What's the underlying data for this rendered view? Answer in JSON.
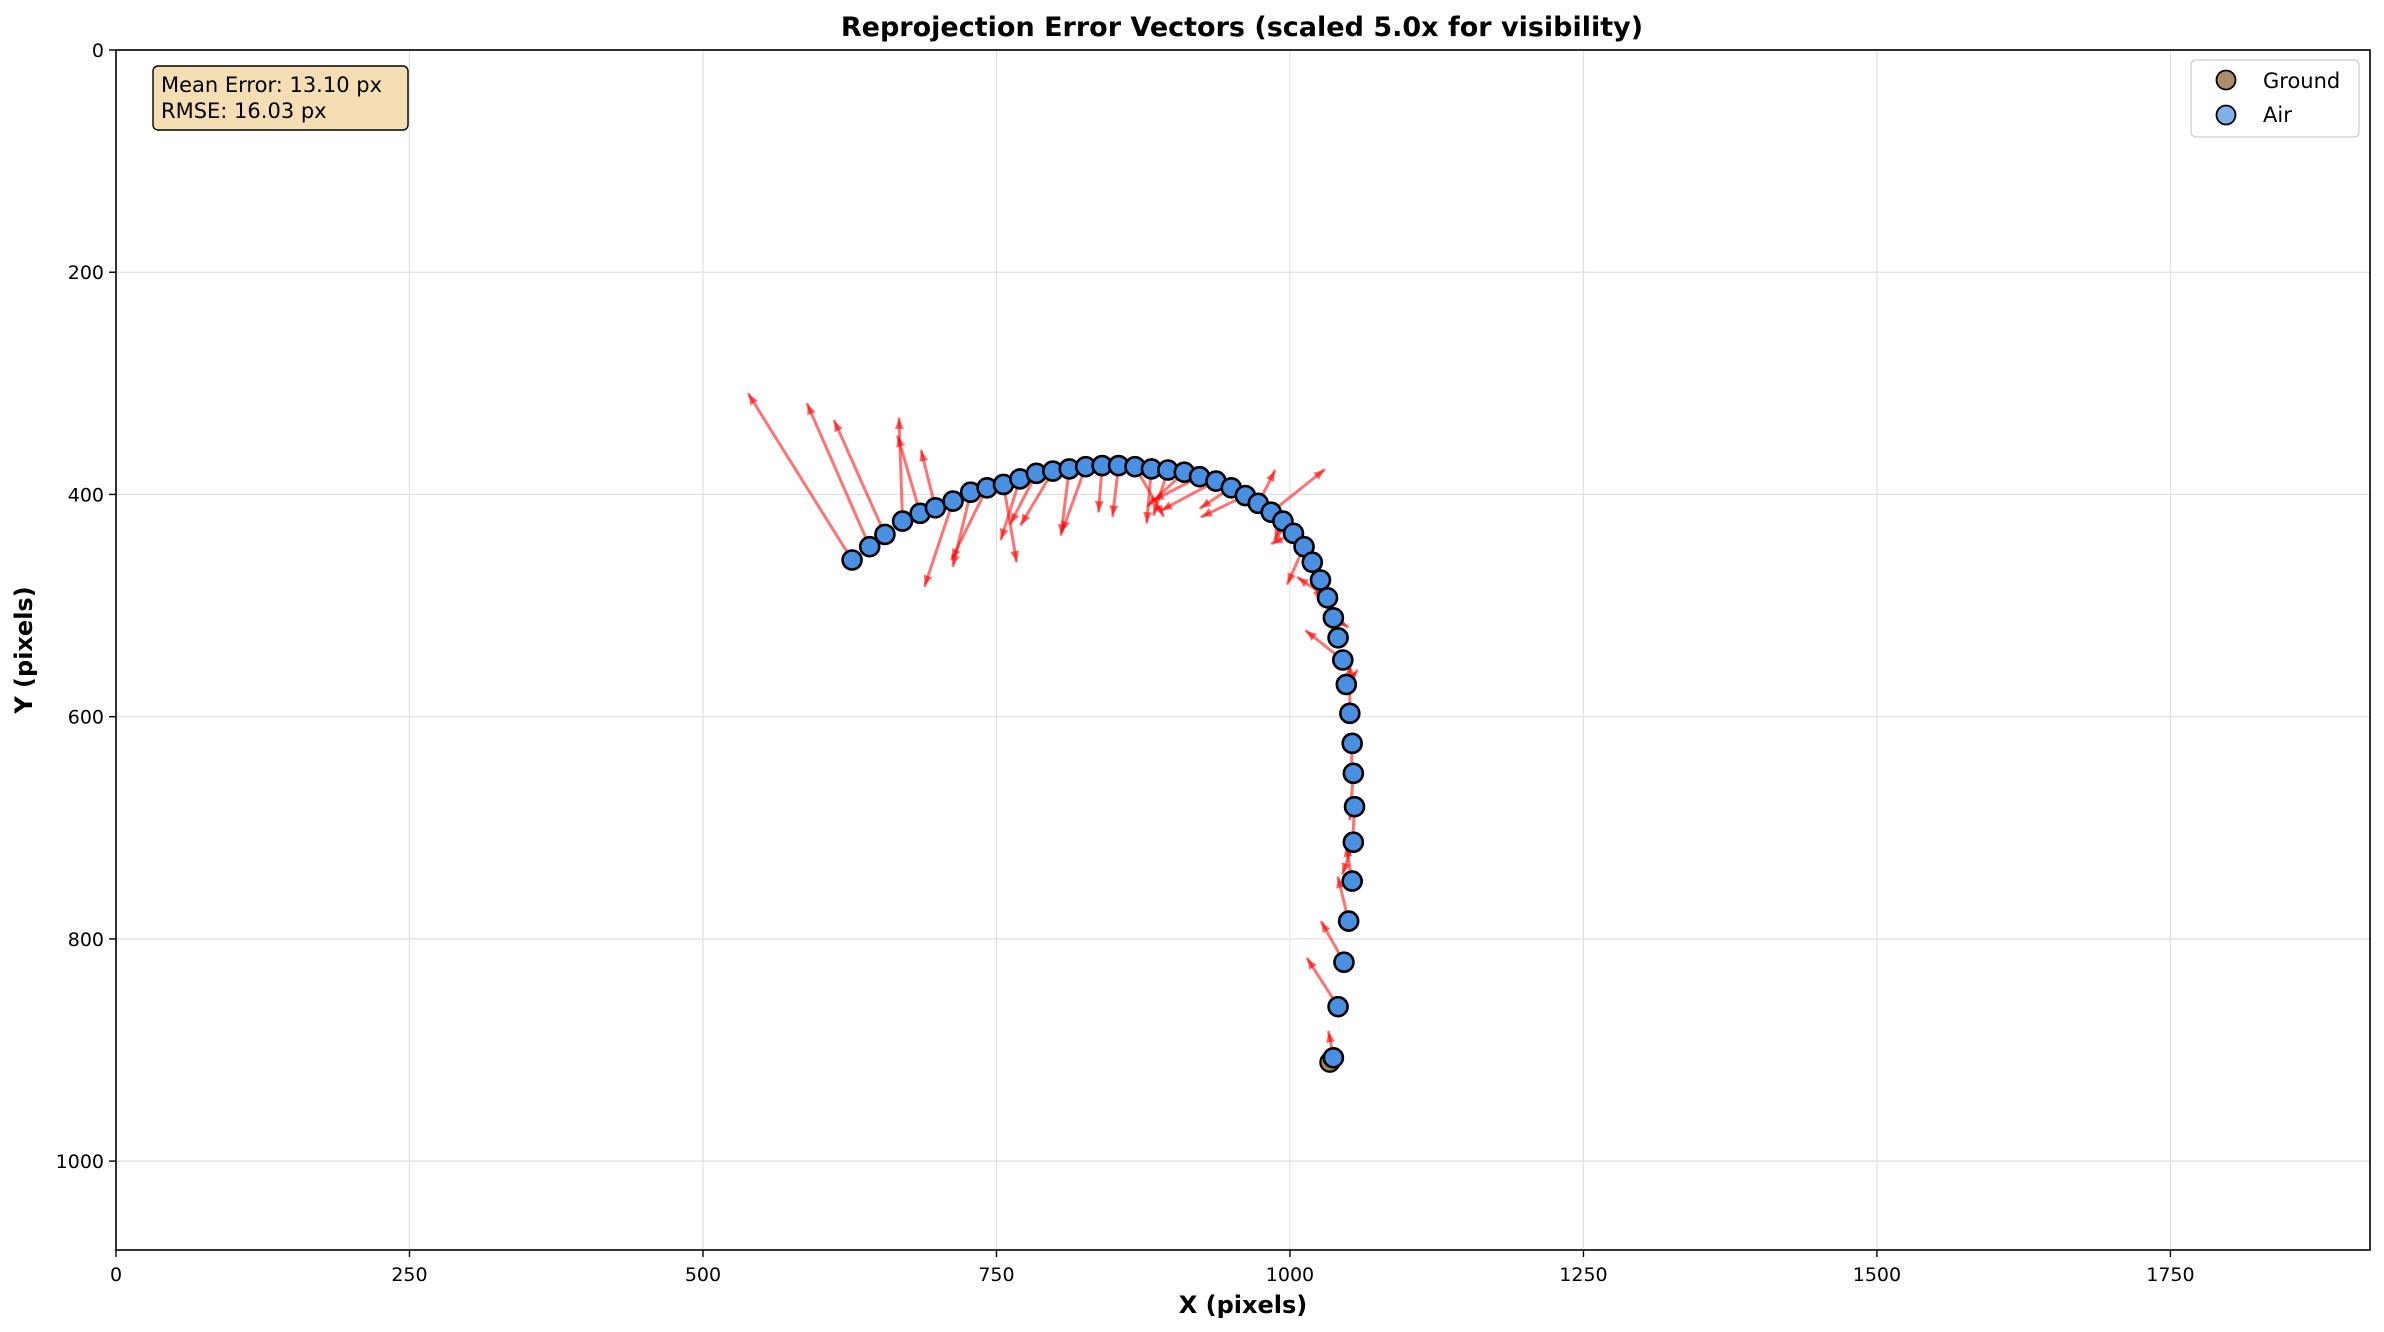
{
  "chart_data": {
    "type": "scatter",
    "title": "Reprojection Error Vectors (scaled 5.0x for visibility)",
    "xlabel": "X (pixels)",
    "ylabel": "Y (pixels)",
    "xlim": [
      0,
      1920
    ],
    "ylim": [
      1080,
      0
    ],
    "y_inverted": true,
    "xticks": [
      0,
      250,
      500,
      750,
      1000,
      1250,
      1500,
      1750
    ],
    "yticks": [
      0,
      200,
      400,
      600,
      800,
      1000
    ],
    "grid": true,
    "legend_position": "top-right",
    "arrow_color": "#ff0000",
    "point_edge_color": "#000000",
    "annotation": {
      "lines": [
        "Mean Error: 13.10 px",
        "RMSE: 16.03 px"
      ],
      "background": "#f5deb3"
    },
    "series": [
      {
        "name": "Ground",
        "color": "#8b5a2b",
        "points": [
          [
            1034,
            911
          ]
        ]
      },
      {
        "name": "Air",
        "color": "#4a90e2",
        "points": [
          [
            627,
            459
          ],
          [
            642,
            447
          ],
          [
            655,
            436
          ],
          [
            670,
            424
          ],
          [
            685,
            417
          ],
          [
            698,
            412
          ],
          [
            713,
            406
          ],
          [
            728,
            398
          ],
          [
            742,
            394
          ],
          [
            756,
            391
          ],
          [
            770,
            386
          ],
          [
            784,
            381
          ],
          [
            798,
            379
          ],
          [
            812,
            377
          ],
          [
            826,
            375
          ],
          [
            840,
            374
          ],
          [
            854,
            374
          ],
          [
            868,
            375
          ],
          [
            882,
            377
          ],
          [
            896,
            378
          ],
          [
            910,
            380
          ],
          [
            923,
            384
          ],
          [
            937,
            388
          ],
          [
            950,
            394
          ],
          [
            962,
            401
          ],
          [
            973,
            408
          ],
          [
            984,
            416
          ],
          [
            994,
            424
          ],
          [
            1003,
            435
          ],
          [
            1012,
            447
          ],
          [
            1019,
            461
          ],
          [
            1026,
            477
          ],
          [
            1032,
            493
          ],
          [
            1037,
            511
          ],
          [
            1041,
            529
          ],
          [
            1045,
            549
          ],
          [
            1048,
            571
          ],
          [
            1051,
            597
          ],
          [
            1053,
            624
          ],
          [
            1054,
            651
          ],
          [
            1055,
            681
          ],
          [
            1054,
            713
          ],
          [
            1053,
            748
          ],
          [
            1050,
            784
          ],
          [
            1046,
            821
          ],
          [
            1041,
            861
          ],
          [
            1037,
            907
          ]
        ],
        "error_vectors_scaled": [
          [
            -88,
            -149
          ],
          [
            -53,
            -128
          ],
          [
            -43,
            -102
          ],
          [
            -3,
            -92
          ],
          [
            -19,
            -69
          ],
          [
            -12,
            -51
          ],
          [
            -24,
            76
          ],
          [
            -15,
            66
          ],
          [
            -30,
            64
          ],
          [
            11,
            69
          ],
          [
            -16,
            54
          ],
          [
            -22,
            45
          ],
          [
            -27,
            48
          ],
          [
            -7,
            59
          ],
          [
            -20,
            58
          ],
          [
            -3,
            41
          ],
          [
            -5,
            45
          ],
          [
            24,
            44
          ],
          [
            -4,
            48
          ],
          [
            -12,
            40
          ],
          [
            -31,
            30
          ],
          [
            -39,
            21
          ],
          [
            -46,
            26
          ],
          [
            -26,
            18
          ],
          [
            -37,
            19
          ],
          [
            14,
            -29
          ],
          [
            45,
            -38
          ],
          [
            -7,
            17
          ],
          [
            -18,
            9
          ],
          [
            -14,
            33
          ],
          [
            6,
            35
          ],
          [
            -3,
            -22
          ],
          [
            -25,
            -18
          ],
          [
            12,
            8
          ],
          [
            -12,
            -20
          ],
          [
            -31,
            -26
          ],
          [
            9,
            -12
          ],
          [
            0,
            -44
          ],
          [
            -1,
            34
          ],
          [
            -3,
            41
          ],
          [
            -2,
            39
          ],
          [
            -9,
            28
          ],
          [
            -5,
            -31
          ],
          [
            -9,
            -39
          ],
          [
            -19,
            -36
          ],
          [
            -26,
            -43
          ],
          [
            -4,
            -23
          ]
        ]
      }
    ]
  }
}
